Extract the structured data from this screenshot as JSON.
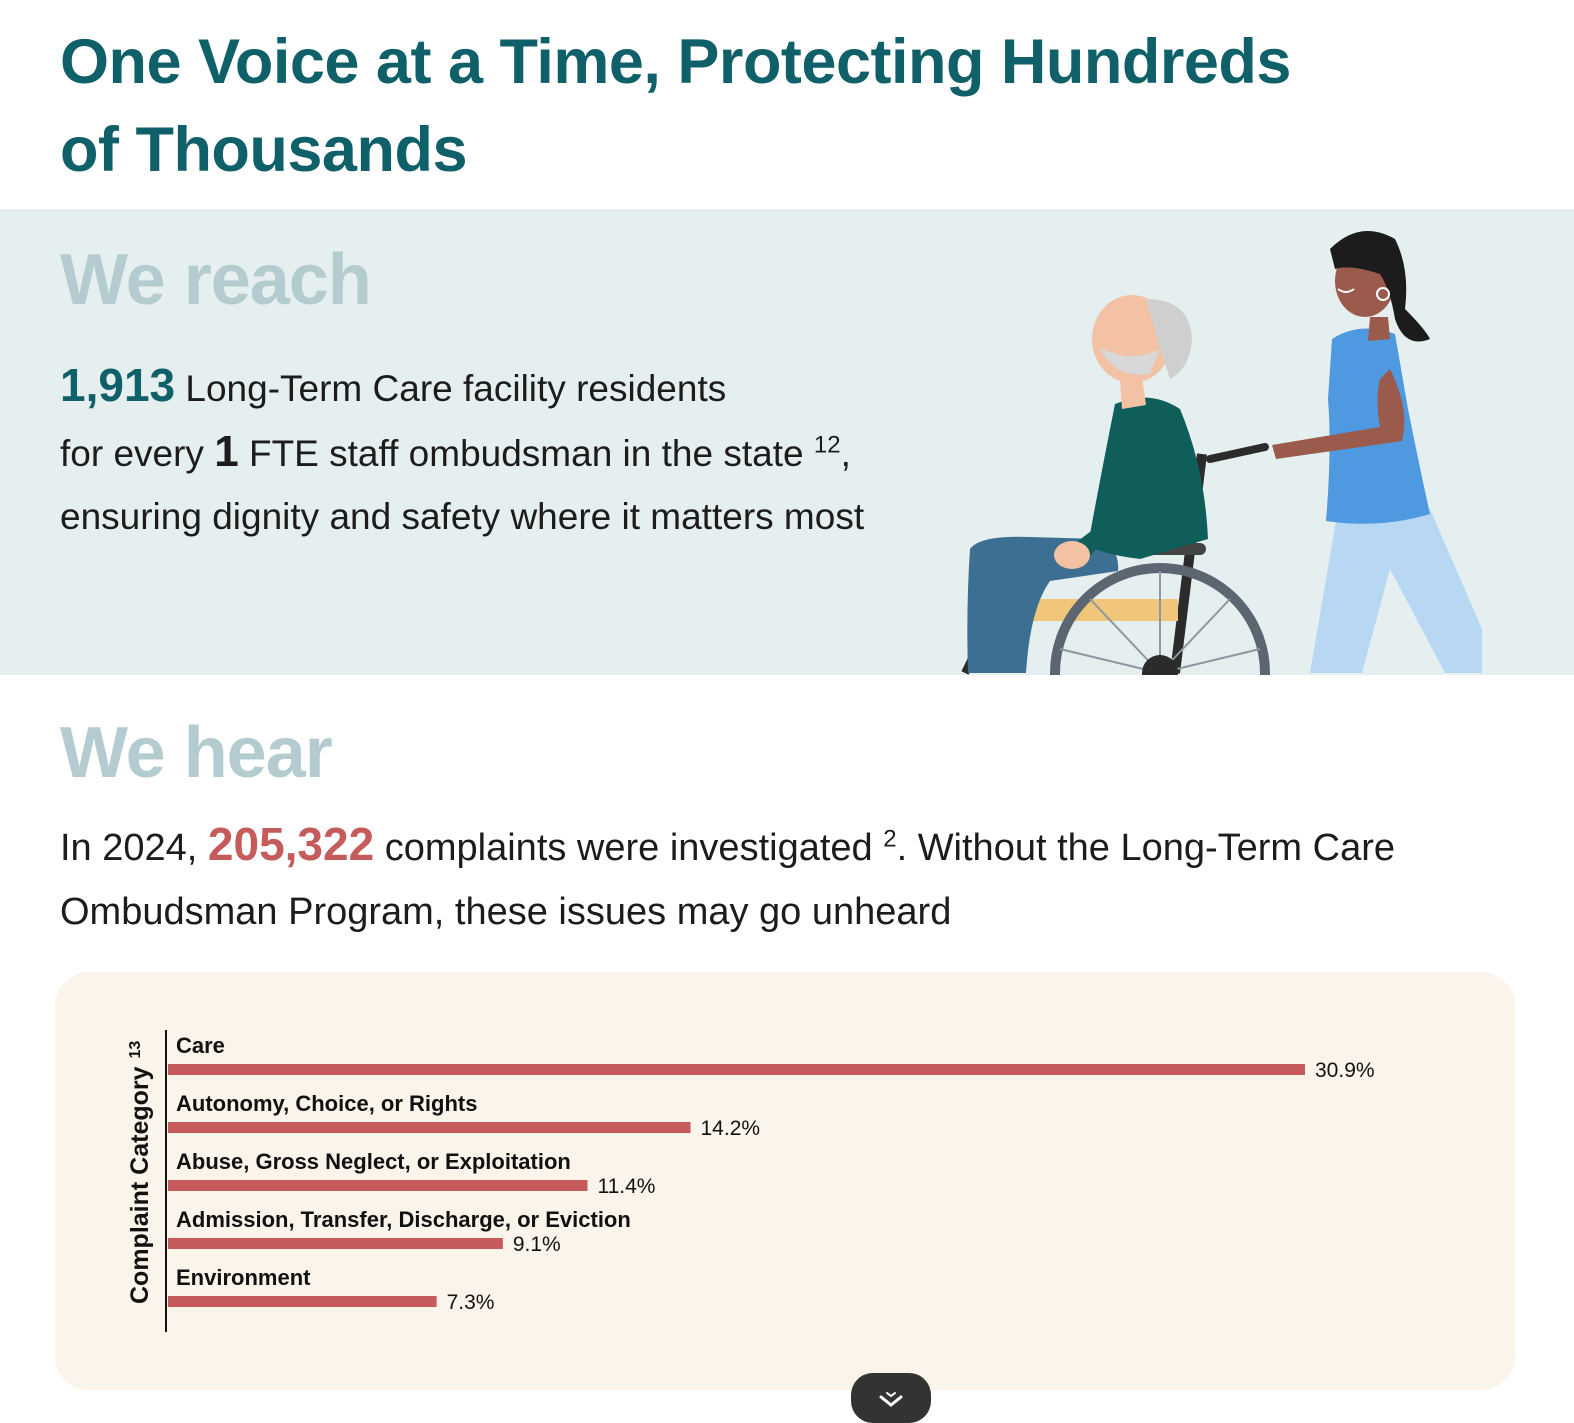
{
  "page": {
    "title": "One Voice at a Time, Protecting Hundreds of Thousands"
  },
  "reach": {
    "heading": "We reach",
    "residents_count": "1,913",
    "line1_text": " Long-Term Care facility residents",
    "line2_prefix": "for every ",
    "staff_count": "1",
    "line2_text": " FTE staff ombudsman in the state ",
    "footnote": "12",
    "line2_suffix": ",",
    "line3_text": "ensuring dignity and safety where it matters most"
  },
  "hear": {
    "heading": "We hear",
    "prefix": "In 2024, ",
    "complaints_count": "205,322",
    "middle": " complaints were investigated ",
    "footnote": "2",
    "suffix": ". Without the Long-Term Care Ombudsman Program, these issues may go unheard"
  },
  "colors": {
    "brand_teal": "#0f6068",
    "heading_muted": "#b4cccf",
    "accent_red": "#c65b5b",
    "band_bg": "#e6eff0",
    "card_bg": "#faf4ea"
  },
  "chart_data": {
    "type": "bar",
    "orientation": "horizontal",
    "ylabel": "Complaint Category",
    "ylabel_footnote": "13",
    "categories": [
      "Care",
      "Autonomy, Choice, or Rights",
      "Abuse, Gross Neglect, or Exploitation",
      "Admission, Transfer, Discharge, or Eviction",
      "Environment"
    ],
    "values": [
      30.9,
      14.2,
      11.4,
      9.1,
      7.3
    ],
    "value_labels": [
      "30.9%",
      "14.2%",
      "11.4%",
      "9.1%",
      "7.3%"
    ],
    "unit": "%",
    "bar_color": "#c65b5b",
    "grid": false,
    "legend": "none"
  },
  "scroll_button": {
    "icon": "chevron-down-icon"
  }
}
